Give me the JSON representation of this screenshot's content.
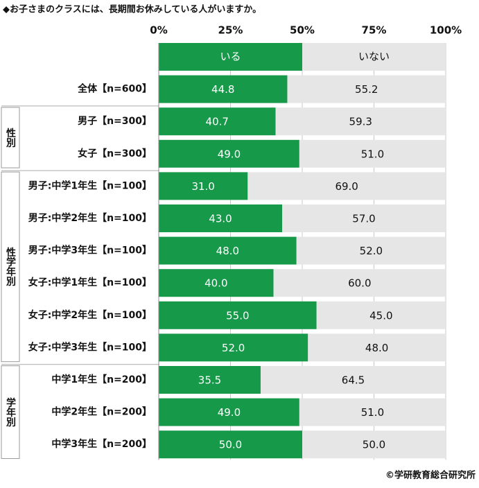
{
  "chart_data": {
    "type": "stacked-bar-horizontal",
    "title": "◆お子さまのクラスには、長期間お休みしている人がいますか。",
    "categories": [
      "全体【n=600】",
      "男子【n=300】",
      "女子【n=300】",
      "男子:中学1年生【n=100】",
      "男子:中学2年生【n=100】",
      "男子:中学3年生【n=100】",
      "女子:中学1年生【n=100】",
      "女子:中学2年生【n=100】",
      "女子:中学3年生【n=100】",
      "中学1年生【n=200】",
      "中学2年生【n=200】",
      "中学3年生【n=200】"
    ],
    "groups": [
      "性別",
      "性学年別",
      "学年別"
    ],
    "series": [
      {
        "name": "いる",
        "color": "#17994a",
        "values": [
          44.8,
          40.7,
          49,
          31,
          43,
          48,
          40,
          55,
          52,
          35.5,
          49,
          50
        ],
        "value_labels": [
          "44.8",
          "40.7",
          "49.0",
          "31.0",
          "43.0",
          "48.0",
          "40.0",
          "55.0",
          "52.0",
          "35.5",
          "49.0",
          "50.0"
        ]
      },
      {
        "name": "いない",
        "color": "#e6e6e6",
        "values": [
          55.2,
          59.3,
          51,
          69,
          57,
          52,
          60,
          45,
          48,
          64.5,
          51,
          50
        ],
        "value_labels": [
          "55.2",
          "59.3",
          "51.0",
          "69.0",
          "57.0",
          "52.0",
          "60.0",
          "45.0",
          "48.0",
          "64.5",
          "51.0",
          "50.0"
        ]
      }
    ],
    "xlim": [
      0,
      100
    ],
    "xticks": [
      {
        "value": 0,
        "label": "0%"
      },
      {
        "value": 25,
        "label": "25%"
      },
      {
        "value": 50,
        "label": "50%"
      },
      {
        "value": 75,
        "label": "75%"
      },
      {
        "value": 100,
        "label": "100%"
      }
    ],
    "grid": true,
    "source": "©学研教育総合研究所"
  }
}
